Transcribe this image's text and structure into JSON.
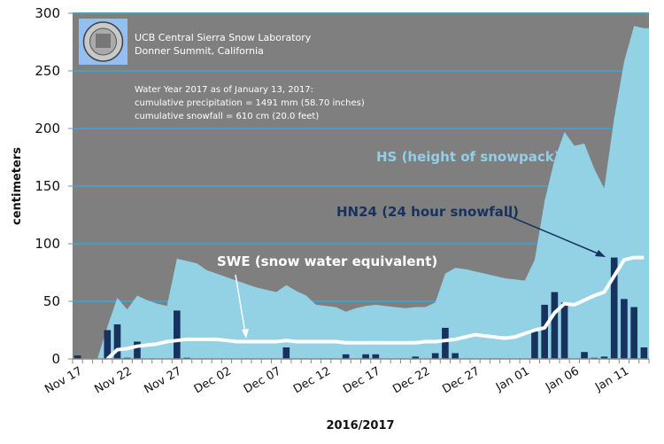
{
  "chart_data": {
    "type": "bar+area+line",
    "header": {
      "title_line1": "UCB Central Sierra Snow Laboratory",
      "title_line2": "Donner Summit, California",
      "info_line1": "Water Year 2017 as of January 13, 2017:",
      "info_line2": "cumulative precipitation = 1491 mm (58.70 inches)",
      "info_line3": "cumulative snowfall = 610 cm (20.0 feet)",
      "logo": "UC Berkeley seal"
    },
    "xlabel": "2016/2017",
    "ylabel": "centimeters",
    "ylim": [
      0,
      300
    ],
    "yticks": [
      "0",
      "50",
      "100",
      "150",
      "200",
      "250",
      "300"
    ],
    "xtick_labels": [
      "Nov 17",
      "Nov 22",
      "Nov 27",
      "Dec 02",
      "Dec 07",
      "Dec 12",
      "Dec 17",
      "Dec 22",
      "Dec 27",
      "Jan 01",
      "Jan 06",
      "Jan 11"
    ],
    "x_range": [
      "2016-11-17",
      "2017-01-13"
    ],
    "grid": true,
    "annotations": {
      "hs": "HS (height  of snowpack)",
      "hn24": "HN24 (24 hour snowfall)",
      "swe": "SWE (snow water equivalent)"
    },
    "colors": {
      "plot_background": "#7f7f7f",
      "gridline": "#4a9cc0",
      "hs_fill": "#93d1e5",
      "hn24_bar": "#17325e",
      "swe_line": "#ffffff",
      "hs_label": "#8fd0e8",
      "hn24_label": "#17325e"
    },
    "series": [
      {
        "name": "HS (height  of snowpack)",
        "type": "area",
        "values": [
          0,
          0,
          0,
          28,
          53,
          43,
          55,
          51,
          48,
          46,
          87,
          85,
          83,
          77,
          74,
          71,
          68,
          65,
          62,
          60,
          58,
          64,
          59,
          55,
          47,
          46,
          45,
          41,
          44,
          46,
          47,
          46,
          45,
          44,
          45,
          45,
          49,
          74,
          79,
          78,
          76,
          74,
          72,
          70,
          69,
          68,
          86,
          137,
          173,
          197,
          185,
          187,
          165,
          148,
          209,
          258,
          289,
          287
        ]
      },
      {
        "name": "HN24 (24 hour snowfall)",
        "type": "bar",
        "values": [
          3,
          0,
          0,
          25,
          30,
          1,
          15,
          0,
          0,
          0,
          42,
          1,
          0,
          0,
          0,
          0,
          0,
          0,
          0,
          0,
          0,
          10,
          0,
          0,
          0,
          0,
          0,
          4,
          0,
          4,
          4,
          0,
          0,
          0,
          2,
          0,
          5,
          27,
          5,
          0,
          0,
          0,
          0,
          0,
          0,
          0,
          24,
          47,
          58,
          49,
          0,
          6,
          1,
          2,
          88,
          52,
          45,
          10
        ]
      },
      {
        "name": "SWE (snow water equivalent)",
        "type": "line",
        "values": [
          null,
          null,
          null,
          0,
          8,
          9,
          11,
          12,
          13,
          15,
          16,
          17,
          17,
          17,
          17,
          16,
          15,
          15,
          15,
          15,
          15,
          16,
          15,
          15,
          15,
          15,
          15,
          14,
          14,
          14,
          14,
          14,
          14,
          14,
          14,
          15,
          15,
          16,
          17,
          19,
          21,
          20,
          19,
          18,
          19,
          22,
          25,
          27,
          40,
          48,
          47,
          51,
          55,
          58,
          72,
          86,
          88,
          88
        ]
      }
    ]
  }
}
